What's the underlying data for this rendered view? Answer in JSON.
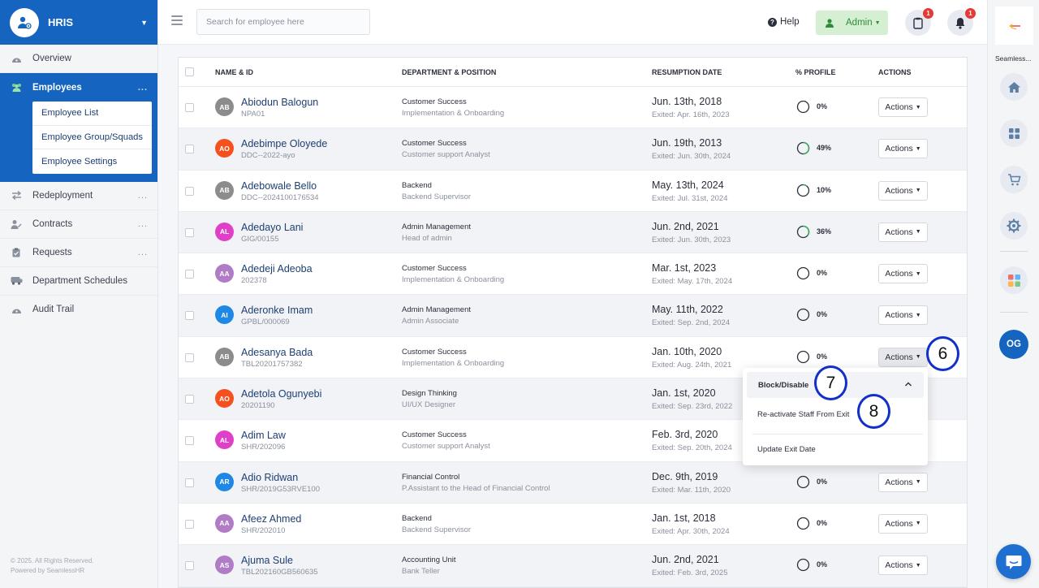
{
  "app": {
    "title": "HRIS"
  },
  "sidebar": {
    "items": [
      {
        "label": "Overview",
        "icon": "dashboard-icon"
      },
      {
        "label": "Employees",
        "icon": "people-icon"
      },
      {
        "label": "Redeployment",
        "icon": "swap-arrows-icon"
      },
      {
        "label": "Contracts",
        "icon": "user-pen-icon"
      },
      {
        "label": "Requests",
        "icon": "clipboard-icon"
      },
      {
        "label": "Department Schedules",
        "icon": "bus-icon"
      },
      {
        "label": "Audit Trail",
        "icon": "dashboard-icon"
      }
    ],
    "more": "...",
    "submenu": [
      "Employee List",
      "Employee Group/Squads",
      "Employee Settings"
    ],
    "footer_line1": "© 2025. All Rights Reserved.",
    "footer_line2": "Powered by SeamlessHR"
  },
  "header": {
    "search_placeholder": "Search for employee here",
    "help": "Help",
    "admin": "Admin",
    "clipboard_badge": "1",
    "bell_badge": "1"
  },
  "table": {
    "headers": [
      "NAME & ID",
      "DEPARTMENT & POSITION",
      "RESUMPTION DATE",
      "% PROFILE",
      "ACTIONS"
    ],
    "action_label": "Actions",
    "rows": [
      {
        "initials": "AB",
        "avatar_color": "#8c8c8c",
        "name": "Abiodun Balogun",
        "id": "NPA01",
        "dept": "Customer Success",
        "position": "Implementation & Onboarding",
        "date": "Jun. 13th, 2018",
        "exited": "Exited: Apr. 16th, 2023",
        "profile": "0%",
        "profile_value": 0
      },
      {
        "initials": "AO",
        "avatar_color": "#f4511e",
        "name": "Adebimpe Oloyede",
        "id": "DDC--2022-ayo",
        "dept": "Customer Success",
        "position": "Customer support Analyst",
        "date": "Jun. 19th, 2013",
        "exited": "Exited: Jun. 30th, 2024",
        "profile": "49%",
        "profile_value": 49
      },
      {
        "initials": "AB",
        "avatar_color": "#8c8c8c",
        "name": "Adebowale Bello",
        "id": "DDC--2024100176534",
        "dept": "Backend",
        "position": "Backend Supervisor",
        "date": "May. 13th, 2024",
        "exited": "Exited: Jul. 31st, 2024",
        "profile": "10%",
        "profile_value": 10
      },
      {
        "initials": "AL",
        "avatar_color": "#e040c8",
        "name": "Adedayo Lani",
        "id": "GIG/00155",
        "dept": "Admin Management",
        "position": "Head of admin",
        "date": "Jun. 2nd, 2021",
        "exited": "Exited: Jun. 30th, 2023",
        "profile": "36%",
        "profile_value": 36
      },
      {
        "initials": "AA",
        "avatar_color": "#b07cc6",
        "name": "Adedeji Adeoba",
        "id": "202378",
        "dept": "Customer Success",
        "position": "Implementation & Onboarding",
        "date": "Mar. 1st, 2023",
        "exited": "Exited: May. 17th, 2024",
        "profile": "0%",
        "profile_value": 0
      },
      {
        "initials": "AI",
        "avatar_color": "#1e88e5",
        "name": "Aderonke Imam",
        "id": "GPBL/000069",
        "dept": "Admin Management",
        "position": "Admin Associate",
        "date": "May. 11th, 2022",
        "exited": "Exited: Sep. 2nd, 2024",
        "profile": "0%",
        "profile_value": 0
      },
      {
        "initials": "AB",
        "avatar_color": "#8c8c8c",
        "name": "Adesanya Bada",
        "id": "TBL20201757382",
        "dept": "Customer Success",
        "position": "Implementation & Onboarding",
        "date": "Jan. 10th, 2020",
        "exited": "Exited: Aug. 24th, 2021",
        "profile": "0%",
        "profile_value": 0
      },
      {
        "initials": "AO",
        "avatar_color": "#f4511e",
        "name": "Adetola Ogunyebi",
        "id": "20201190",
        "dept": "Design Thinking",
        "position": "UI/UX Designer",
        "date": "Jan. 1st, 2020",
        "exited": "Exited: Sep. 23rd, 2022",
        "profile": "",
        "profile_value": null
      },
      {
        "initials": "AL",
        "avatar_color": "#e040c8",
        "name": "Adim Law",
        "id": "SHR/202096",
        "dept": "Customer Success",
        "position": "Customer support Analyst",
        "date": "Feb. 3rd, 2020",
        "exited": "Exited: Sep. 20th, 2024",
        "profile": "",
        "profile_value": null
      },
      {
        "initials": "AR",
        "avatar_color": "#1e88e5",
        "name": "Adio Ridwan",
        "id": "SHR/2019G53RVE100",
        "dept": "Financial Control",
        "position": "P.Assistant to the Head of Financial Control",
        "date": "Dec. 9th, 2019",
        "exited": "Exited: Mar. 11th, 2020",
        "profile": "0%",
        "profile_value": 0
      },
      {
        "initials": "AA",
        "avatar_color": "#b07cc6",
        "name": "Afeez Ahmed",
        "id": "SHR/202010",
        "dept": "Backend",
        "position": "Backend Supervisor",
        "date": "Jan. 1st, 2018",
        "exited": "Exited: Apr. 30th, 2024",
        "profile": "0%",
        "profile_value": 0
      },
      {
        "initials": "AS",
        "avatar_color": "#b07cc6",
        "name": "Ajuma Sule",
        "id": "TBL202160GB560635",
        "dept": "Accounting Unit",
        "position": "Bank Teller",
        "date": "Jun. 2nd, 2021",
        "exited": "Exited: Feb. 3rd, 2025",
        "profile": "0%",
        "profile_value": 0
      }
    ]
  },
  "dropdown": {
    "header": "Block/Disable",
    "items": [
      "Re-activate Staff From Exit",
      "Update Exit Date"
    ]
  },
  "callouts": [
    "6",
    "7",
    "8"
  ],
  "rail": {
    "label": "Seamless...",
    "avatar_initials": "OG"
  },
  "colors": {
    "brand": "#1565c0",
    "accent_green": "#2f8a3a",
    "badge_red": "#e53935",
    "callout_ring": "#1230c9"
  }
}
